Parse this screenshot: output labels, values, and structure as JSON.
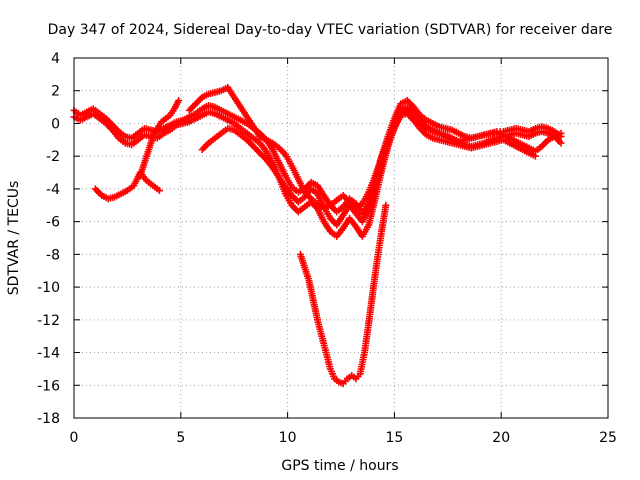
{
  "chart_data": {
    "type": "scatter",
    "title": "Day 347 of 2024, Sidereal Day-to-day VTEC variation (SDTVAR) for receiver dare",
    "xlabel": "GPS time / hours",
    "ylabel": "SDTVAR / TECUs",
    "xlim": [
      0,
      25
    ],
    "ylim": [
      -18,
      4
    ],
    "xticks": [
      "0",
      "5",
      "10",
      "15",
      "20",
      "25"
    ],
    "yticks": [
      "4",
      "2",
      "0",
      "-2",
      "-4",
      "-6",
      "-8",
      "-10",
      "-12",
      "-14",
      "-16",
      "-18"
    ],
    "grid": true,
    "marker": "+",
    "series_color": "#ff0000",
    "series": [
      {
        "x": [
          0.0,
          0.3,
          0.6,
          0.9,
          1.2,
          1.5,
          1.8,
          2.1,
          2.4,
          2.7,
          3.0,
          3.3,
          3.6,
          3.9,
          4.2,
          4.5,
          4.8,
          5.1,
          5.4,
          5.7,
          6.0,
          6.3,
          6.6,
          6.9,
          7.2,
          7.5,
          7.8,
          8.1,
          8.4,
          8.7,
          9.0,
          9.3,
          9.6,
          9.9,
          10.2,
          10.5,
          10.8,
          11.1,
          11.4,
          11.7,
          12.0,
          12.3,
          12.6,
          12.9,
          13.2,
          13.5,
          13.8,
          14.1,
          14.4,
          14.7,
          15.0,
          15.3,
          15.6,
          15.9,
          16.2,
          16.5,
          16.8,
          17.1,
          17.4,
          17.7,
          18.0,
          18.3,
          18.6,
          18.9,
          19.2,
          19.5,
          19.8,
          20.1,
          20.4,
          20.7,
          21.0,
          21.3,
          21.6,
          21.9,
          22.2,
          22.5,
          22.8
        ],
        "y": [
          0.8,
          0.5,
          0.7,
          0.9,
          0.6,
          0.3,
          -0.1,
          -0.5,
          -0.8,
          -0.9,
          -0.6,
          -0.3,
          -0.4,
          -0.5,
          -0.3,
          -0.1,
          0.1,
          0.2,
          0.4,
          0.6,
          0.9,
          1.1,
          1.0,
          0.8,
          0.6,
          0.4,
          0.2,
          0.0,
          -0.3,
          -0.6,
          -1.0,
          -1.6,
          -2.4,
          -3.2,
          -3.9,
          -4.2,
          -4.0,
          -3.6,
          -3.8,
          -4.4,
          -5.0,
          -5.4,
          -5.1,
          -4.6,
          -4.9,
          -5.5,
          -4.8,
          -3.5,
          -2.0,
          -0.8,
          0.3,
          1.2,
          1.4,
          1.0,
          0.5,
          0.2,
          0.0,
          -0.2,
          -0.3,
          -0.4,
          -0.6,
          -0.8,
          -0.9,
          -0.8,
          -0.7,
          -0.6,
          -0.5,
          -0.5,
          -0.4,
          -0.3,
          -0.4,
          -0.5,
          -0.3,
          -0.2,
          -0.3,
          -0.5,
          -0.8
        ]
      },
      {
        "x": [
          0.0,
          0.3,
          0.6,
          0.9,
          1.2,
          1.5,
          1.8,
          2.1,
          2.4,
          2.7,
          3.0,
          3.3,
          3.6,
          3.9,
          4.2,
          4.5,
          4.8,
          5.1,
          5.4,
          5.7,
          6.0,
          6.3,
          6.6,
          6.9,
          7.2,
          7.5,
          7.8,
          8.1,
          8.4,
          8.7,
          9.0,
          9.3,
          9.6,
          9.9,
          10.2,
          10.5,
          10.8,
          11.1,
          11.4,
          11.7,
          12.0,
          12.3,
          12.6,
          12.9,
          13.2,
          13.5,
          13.8,
          14.1,
          14.4,
          14.7,
          15.0,
          15.3,
          15.6,
          15.9,
          16.2,
          16.5,
          16.8,
          17.1,
          17.4,
          17.7,
          18.0,
          18.3,
          18.6,
          18.9,
          19.2,
          19.5,
          19.8,
          20.1,
          20.4,
          20.7,
          21.0,
          21.3,
          21.6,
          21.9,
          22.2,
          22.5,
          22.8
        ],
        "y": [
          0.4,
          0.2,
          0.4,
          0.6,
          0.3,
          0.0,
          -0.4,
          -0.9,
          -1.2,
          -1.3,
          -1.0,
          -0.7,
          -0.8,
          -0.9,
          -0.6,
          -0.4,
          -0.1,
          0.0,
          0.1,
          0.3,
          0.5,
          0.7,
          0.6,
          0.4,
          0.2,
          0.0,
          -0.3,
          -0.6,
          -0.9,
          -1.2,
          -1.7,
          -2.4,
          -3.3,
          -4.3,
          -5.0,
          -5.4,
          -5.1,
          -4.8,
          -5.2,
          -6.0,
          -6.6,
          -6.9,
          -6.4,
          -5.8,
          -6.3,
          -6.9,
          -6.2,
          -4.6,
          -2.9,
          -1.4,
          -0.2,
          0.8,
          1.0,
          0.7,
          0.2,
          -0.2,
          -0.4,
          -0.6,
          -0.7,
          -0.9,
          -1.1,
          -1.3,
          -1.4,
          -1.3,
          -1.2,
          -1.0,
          -0.9,
          -0.8,
          -0.7,
          -0.6,
          -0.7,
          -0.8,
          -0.6,
          -0.5,
          -0.6,
          -0.8,
          -1.2
        ]
      },
      {
        "x": [
          5.4,
          5.7,
          6.0,
          6.3,
          6.6,
          6.9,
          7.2,
          7.5,
          7.8,
          8.1,
          8.4,
          8.7,
          9.0,
          9.3,
          9.6,
          9.9,
          10.2,
          10.5,
          10.8,
          11.1,
          11.4,
          11.7,
          12.0,
          12.3,
          12.6,
          12.9,
          13.2,
          13.5,
          13.8,
          14.1,
          14.4,
          14.7,
          15.0,
          15.3,
          15.6,
          15.9,
          16.2,
          16.5,
          16.8,
          17.1,
          17.4,
          17.7,
          18.0,
          18.3,
          18.6,
          18.9,
          19.2,
          19.5,
          19.8,
          20.1,
          20.4,
          20.7,
          21.0,
          21.3,
          21.6,
          21.9,
          22.2,
          22.5,
          22.8
        ],
        "y": [
          0.8,
          1.2,
          1.6,
          1.8,
          1.9,
          2.0,
          2.2,
          1.6,
          1.0,
          0.4,
          -0.2,
          -0.8,
          -1.0,
          -1.2,
          -1.5,
          -1.9,
          -2.6,
          -3.4,
          -4.2,
          -4.6,
          -4.9,
          -5.2,
          -5.0,
          -4.7,
          -4.4,
          -4.8,
          -5.2,
          -4.9,
          -4.2,
          -3.2,
          -2.1,
          -1.1,
          -0.2,
          0.6,
          0.8,
          0.4,
          0.0,
          -0.3,
          -0.5,
          -0.6,
          -0.8,
          -1.0,
          -1.1,
          -1.0,
          -0.9,
          -0.8,
          -0.7,
          -0.6,
          -0.6,
          -0.7,
          -0.9,
          -1.1,
          -1.3,
          -1.5,
          -1.7,
          -1.4,
          -1.0,
          -0.8,
          -0.6
        ]
      },
      {
        "x": [
          6.0,
          6.3,
          6.6,
          6.9,
          7.2,
          7.5,
          7.8,
          8.1,
          8.4,
          8.7,
          9.0,
          9.3,
          9.6,
          9.9,
          10.2,
          10.5,
          10.8,
          11.1,
          11.4,
          11.7,
          12.0,
          12.3,
          12.6,
          12.9,
          13.2,
          13.5,
          13.8,
          14.1,
          14.4,
          14.7,
          15.0,
          15.3,
          15.6,
          15.9,
          16.2,
          16.5,
          16.8,
          17.1,
          17.4,
          17.7,
          18.0,
          18.3,
          18.6,
          18.9,
          19.2,
          19.5,
          19.8,
          20.1,
          20.4,
          20.7,
          21.0,
          21.3,
          21.6
        ],
        "y": [
          -1.6,
          -1.2,
          -0.9,
          -0.6,
          -0.3,
          -0.4,
          -0.7,
          -1.0,
          -1.4,
          -1.8,
          -2.2,
          -2.7,
          -3.3,
          -3.9,
          -4.4,
          -4.8,
          -4.5,
          -4.0,
          -4.3,
          -5.1,
          -5.8,
          -6.2,
          -5.6,
          -5.0,
          -5.5,
          -6.0,
          -5.2,
          -3.9,
          -2.6,
          -1.3,
          -0.3,
          0.5,
          0.6,
          0.2,
          -0.3,
          -0.7,
          -0.9,
          -1.0,
          -1.1,
          -1.2,
          -1.3,
          -1.4,
          -1.5,
          -1.4,
          -1.3,
          -1.2,
          -1.1,
          -1.0,
          -1.2,
          -1.4,
          -1.6,
          -1.8,
          -2.0
        ]
      },
      {
        "x": [
          1.0,
          1.3,
          1.6,
          1.9,
          2.2,
          2.5,
          2.8,
          3.1,
          3.4,
          3.7,
          4.0
        ],
        "y": [
          -4.0,
          -4.4,
          -4.6,
          -4.5,
          -4.3,
          -4.1,
          -3.8,
          -3.0,
          -3.5,
          -3.8,
          -4.1
        ]
      },
      {
        "x": [
          3.1,
          3.3,
          3.5,
          3.7,
          3.9,
          4.1,
          4.3,
          4.5,
          4.7,
          4.9
        ],
        "y": [
          -3.2,
          -2.4,
          -1.6,
          -0.8,
          -0.3,
          0.1,
          0.3,
          0.5,
          0.9,
          1.4
        ]
      },
      {
        "x": [
          10.6,
          10.8,
          11.0,
          11.2,
          11.4,
          11.6,
          11.8,
          12.0,
          12.2,
          12.4,
          12.6,
          12.8,
          13.0,
          13.2,
          13.4,
          13.6,
          13.8,
          14.0,
          14.2,
          14.4,
          14.6
        ],
        "y": [
          -8.0,
          -8.8,
          -9.6,
          -10.8,
          -12.0,
          -13.0,
          -14.0,
          -15.0,
          -15.6,
          -15.8,
          -15.9,
          -15.6,
          -15.4,
          -15.6,
          -15.3,
          -14.0,
          -12.2,
          -10.2,
          -8.3,
          -6.6,
          -5.0
        ]
      }
    ]
  }
}
